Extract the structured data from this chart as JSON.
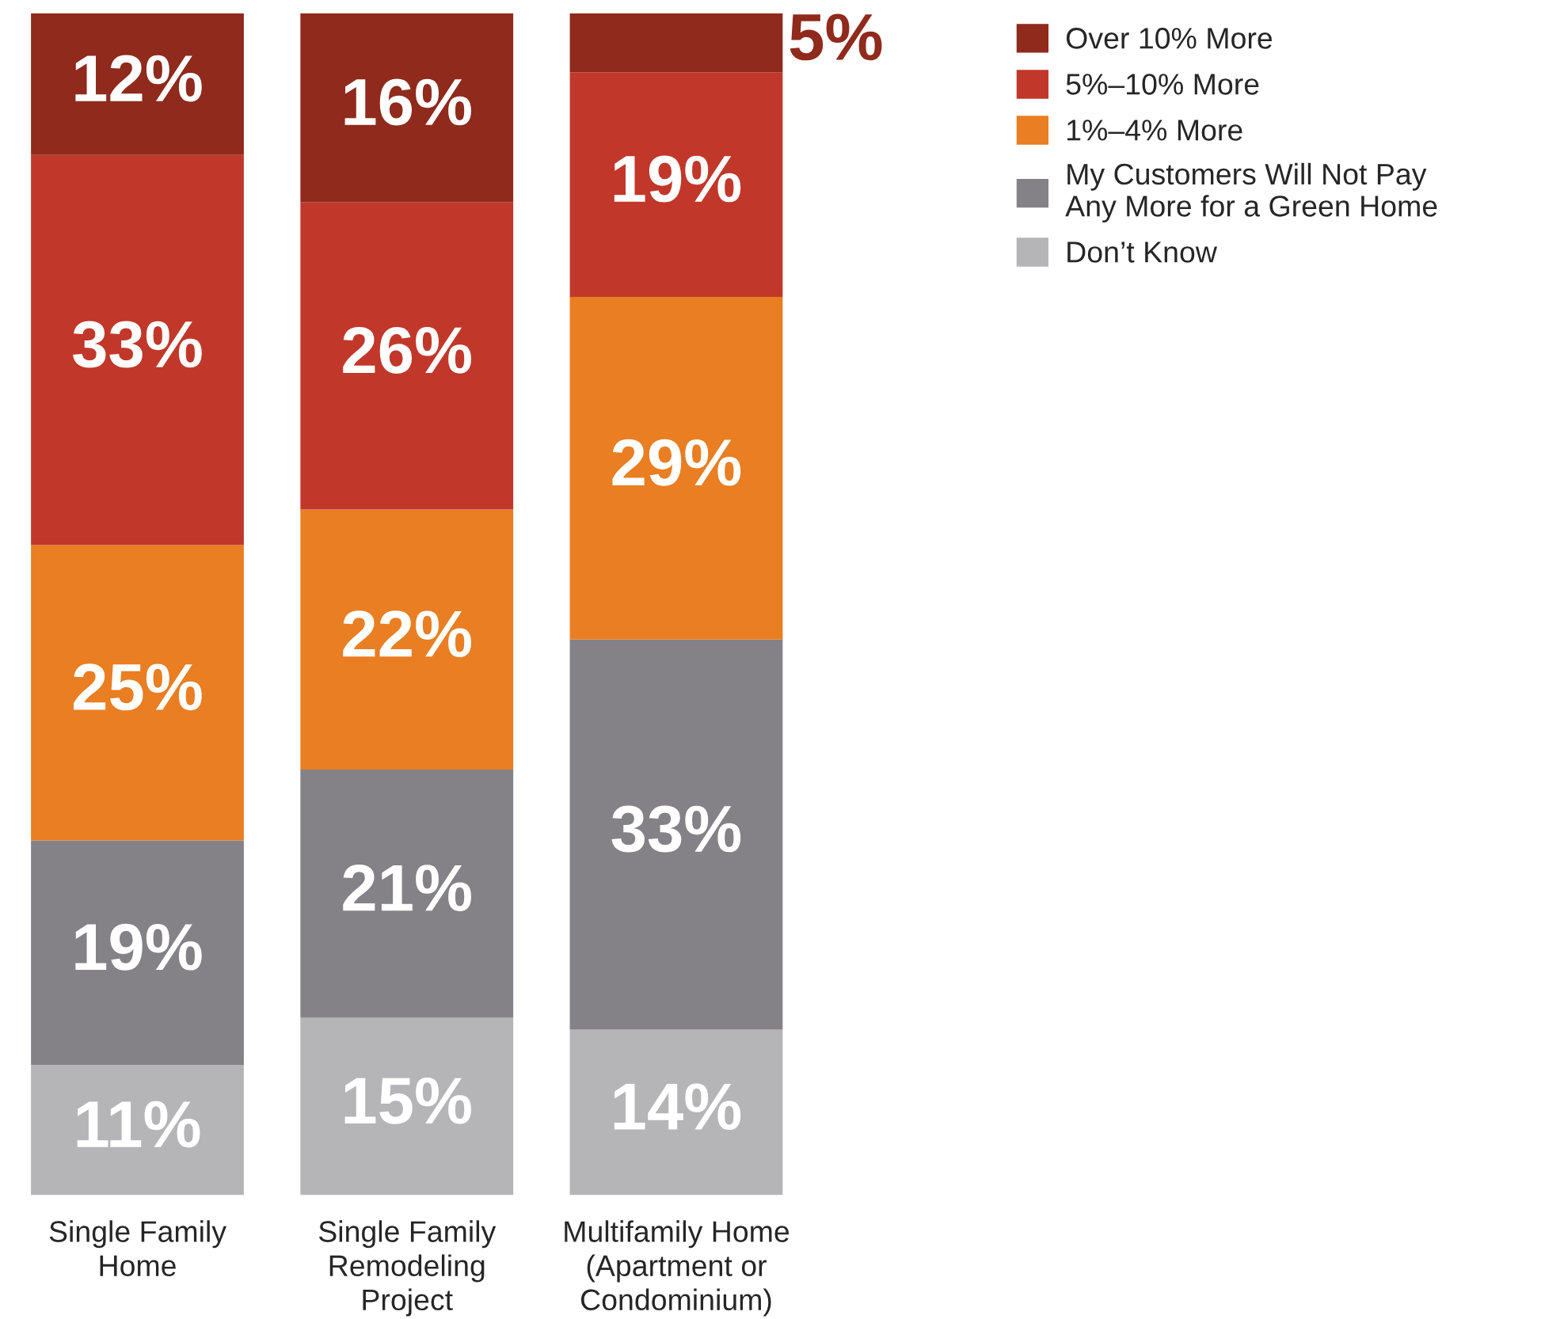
{
  "chart_data": {
    "type": "bar",
    "stacked": true,
    "categories": [
      "Single Family\nHome",
      "Single Family\nRemodeling\nProject",
      "Multifamily Home\n(Apartment or\nCondominium)"
    ],
    "series": [
      {
        "name": "Don’t Know",
        "color": "#b5b4b7",
        "values": [
          11,
          15,
          14
        ],
        "value_labels": [
          "11%",
          "15%",
          "14%"
        ]
      },
      {
        "name": "My Customers Will Not Pay\nAny More for a Green Home",
        "color": "#848287",
        "values": [
          19,
          21,
          33
        ],
        "value_labels": [
          "19%",
          "21%",
          "33%"
        ]
      },
      {
        "name": "1%–4% More",
        "color": "#e97e22",
        "values": [
          25,
          22,
          29
        ],
        "value_labels": [
          "25%",
          "22%",
          "29%"
        ]
      },
      {
        "name": "5%–10% More",
        "color": "#c1382a",
        "values": [
          33,
          26,
          19
        ],
        "value_labels": [
          "33%",
          "26%",
          "19%"
        ]
      },
      {
        "name": "Over 10% More",
        "color": "#8f2a1c",
        "values": [
          12,
          16,
          5
        ],
        "value_labels": [
          "12%",
          "16%",
          "5%"
        ]
      }
    ],
    "legend": "top right",
    "grid": false,
    "tick_labels": "x"
  }
}
